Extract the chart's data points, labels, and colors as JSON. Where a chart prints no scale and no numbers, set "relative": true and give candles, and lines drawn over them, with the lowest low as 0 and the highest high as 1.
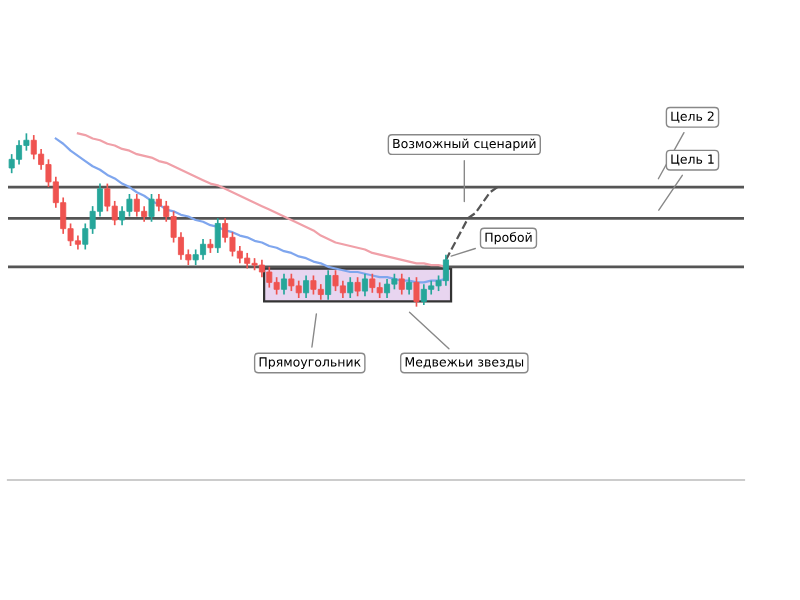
{
  "chart_data": {
    "type": "candlestick",
    "relative": true,
    "categories": [
      null,
      null,
      null,
      null,
      null,
      null,
      null,
      null,
      null,
      null,
      null,
      null,
      null,
      null,
      null,
      null,
      null,
      null,
      null,
      null,
      null,
      null,
      null,
      null,
      null,
      null,
      null,
      null,
      null,
      null,
      null,
      null,
      null,
      null,
      null,
      null,
      null,
      null,
      null,
      null,
      null,
      null,
      null,
      null,
      null,
      null,
      null,
      null,
      null,
      null,
      null,
      null,
      null,
      null,
      null,
      null,
      null,
      null,
      null,
      null,
      null,
      null,
      null,
      null,
      null,
      null,
      null,
      null,
      null,
      null,
      null,
      null,
      null,
      null,
      null,
      null,
      null,
      null,
      null,
      null,
      null,
      null,
      null,
      null,
      null,
      null,
      null,
      null,
      null,
      null,
      null,
      null,
      null,
      null,
      null,
      null,
      null,
      null,
      null,
      null
    ],
    "ohlc": [
      [
        0.8,
        0.88,
        0.77,
        0.85
      ],
      [
        0.85,
        0.96,
        0.82,
        0.93
      ],
      [
        0.93,
        1.0,
        0.9,
        0.96
      ],
      [
        0.96,
        0.99,
        0.85,
        0.88
      ],
      [
        0.88,
        0.91,
        0.79,
        0.82
      ],
      [
        0.82,
        0.85,
        0.69,
        0.72
      ],
      [
        0.72,
        0.75,
        0.57,
        0.6
      ],
      [
        0.6,
        0.63,
        0.42,
        0.45
      ],
      [
        0.45,
        0.48,
        0.35,
        0.38
      ],
      [
        0.38,
        0.41,
        0.33,
        0.36
      ],
      [
        0.36,
        0.48,
        0.33,
        0.45
      ],
      [
        0.45,
        0.58,
        0.42,
        0.55
      ],
      [
        0.55,
        0.71,
        0.52,
        0.68
      ],
      [
        0.68,
        0.71,
        0.55,
        0.58
      ],
      [
        0.58,
        0.61,
        0.47,
        0.5
      ],
      [
        0.5,
        0.58,
        0.47,
        0.55
      ],
      [
        0.55,
        0.65,
        0.52,
        0.62
      ],
      [
        0.62,
        0.65,
        0.52,
        0.55
      ],
      [
        0.55,
        0.58,
        0.49,
        0.52
      ],
      [
        0.52,
        0.65,
        0.49,
        0.62
      ],
      [
        0.62,
        0.65,
        0.55,
        0.58
      ],
      [
        0.58,
        0.61,
        0.49,
        0.52
      ],
      [
        0.52,
        0.55,
        0.37,
        0.4
      ],
      [
        0.4,
        0.43,
        0.27,
        0.3
      ],
      [
        0.3,
        0.33,
        0.24,
        0.27
      ],
      [
        0.27,
        0.33,
        0.24,
        0.3
      ],
      [
        0.3,
        0.39,
        0.27,
        0.36
      ],
      [
        0.36,
        0.39,
        0.31,
        0.34
      ],
      [
        0.34,
        0.51,
        0.31,
        0.48
      ],
      [
        0.48,
        0.51,
        0.37,
        0.4
      ],
      [
        0.4,
        0.43,
        0.29,
        0.32
      ],
      [
        0.32,
        0.35,
        0.25,
        0.28
      ],
      [
        0.28,
        0.31,
        0.22,
        0.25
      ],
      [
        0.25,
        0.28,
        0.21,
        0.24
      ],
      [
        0.24,
        0.27,
        0.17,
        0.2
      ],
      [
        0.2,
        0.23,
        0.11,
        0.14
      ],
      [
        0.14,
        0.17,
        0.07,
        0.1
      ],
      [
        0.1,
        0.19,
        0.07,
        0.16
      ],
      [
        0.16,
        0.19,
        0.09,
        0.12
      ],
      [
        0.12,
        0.15,
        0.05,
        0.08
      ],
      [
        0.08,
        0.18,
        0.05,
        0.15
      ],
      [
        0.15,
        0.18,
        0.07,
        0.1
      ],
      [
        0.1,
        0.13,
        0.04,
        0.07
      ],
      [
        0.07,
        0.21,
        0.04,
        0.18
      ],
      [
        0.18,
        0.21,
        0.09,
        0.12
      ],
      [
        0.12,
        0.15,
        0.05,
        0.08
      ],
      [
        0.08,
        0.17,
        0.05,
        0.14
      ],
      [
        0.14,
        0.17,
        0.06,
        0.09
      ],
      [
        0.09,
        0.19,
        0.06,
        0.16
      ],
      [
        0.16,
        0.19,
        0.08,
        0.11
      ],
      [
        0.11,
        0.14,
        0.05,
        0.08
      ],
      [
        0.08,
        0.16,
        0.05,
        0.13
      ],
      [
        0.13,
        0.19,
        0.1,
        0.16
      ],
      [
        0.16,
        0.19,
        0.07,
        0.1
      ],
      [
        0.1,
        0.17,
        0.07,
        0.14
      ],
      [
        0.14,
        0.17,
        0.0,
        0.03
      ],
      [
        0.03,
        0.13,
        0.01,
        0.1
      ],
      [
        0.1,
        0.15,
        0.07,
        0.12
      ],
      [
        0.12,
        0.18,
        0.09,
        0.15
      ],
      [
        0.15,
        0.3,
        0.12,
        0.27
      ],
      null,
      null,
      null,
      null,
      null,
      null,
      null,
      null,
      null,
      null,
      null,
      null,
      null,
      null,
      null,
      null,
      null,
      null,
      null,
      null,
      null,
      null,
      null,
      null,
      null,
      null,
      null,
      null,
      null,
      null,
      null,
      null,
      null,
      null,
      null,
      null,
      null,
      null,
      null,
      null
    ],
    "colors": [
      "#26a69a",
      "#26a69a",
      "#26a69a",
      "#ef5350",
      "#ef5350",
      "#ef5350",
      "#ef5350",
      "#ef5350",
      "#ef5350",
      "#ef5350",
      "#26a69a",
      "#26a69a",
      "#26a69a",
      "#ef5350",
      "#ef5350",
      "#26a69a",
      "#26a69a",
      "#ef5350",
      "#ef5350",
      "#26a69a",
      "#ef5350",
      "#ef5350",
      "#ef5350",
      "#ef5350",
      "#ef5350",
      "#26a69a",
      "#26a69a",
      "#ef5350",
      "#26a69a",
      "#ef5350",
      "#ef5350",
      "#ef5350",
      "#ef5350",
      "#ef5350",
      "#ef5350",
      "#ef5350",
      "#ef5350",
      "#26a69a",
      "#ef5350",
      "#ef5350",
      "#26a69a",
      "#ef5350",
      "#ef5350",
      "#26a69a",
      "#ef5350",
      "#ef5350",
      "#26a69a",
      "#ef5350",
      "#26a69a",
      "#ef5350",
      "#ef5350",
      "#26a69a",
      "#26a69a",
      "#ef5350",
      "#26a69a",
      "#ef5350",
      "#26a69a",
      "#26a69a",
      "#26a69a",
      "#26a69a",
      null,
      null,
      null,
      null,
      null,
      null,
      null,
      null,
      null,
      null,
      null,
      null,
      null,
      null,
      null,
      null,
      null,
      null,
      null,
      null,
      null,
      null,
      null,
      null,
      null,
      null,
      null,
      null,
      null,
      null,
      null,
      null,
      null,
      null,
      null,
      null,
      null,
      null,
      null,
      null
    ],
    "series": [
      {
        "type": "line",
        "color": "#7fa6ee",
        "values": [
          null,
          null,
          null,
          null,
          null,
          null,
          0.97,
          0.94,
          0.9,
          0.87,
          0.84,
          0.81,
          0.79,
          0.76,
          0.74,
          0.71,
          0.69,
          0.66,
          0.64,
          0.61,
          0.59,
          0.56,
          0.55,
          0.53,
          0.52,
          0.5,
          0.49,
          0.47,
          0.46,
          0.44,
          0.43,
          0.41,
          0.4,
          0.38,
          0.37,
          0.35,
          0.34,
          0.32,
          0.31,
          0.29,
          0.28,
          0.26,
          0.25,
          0.23,
          0.22,
          0.21,
          0.2,
          0.2,
          0.19,
          0.18,
          0.17,
          0.17,
          0.16,
          0.15,
          0.15,
          0.14,
          0.14,
          0.15,
          0.15,
          0.16,
          null,
          null,
          null,
          null,
          null,
          null,
          null,
          null,
          null,
          null,
          null,
          null,
          null,
          null,
          null,
          null,
          null,
          null,
          null,
          null,
          null,
          null,
          null,
          null,
          null,
          null,
          null,
          null,
          null,
          null,
          null,
          null,
          null,
          null,
          null,
          null,
          null,
          null,
          null,
          null
        ]
      },
      {
        "type": "line",
        "color": "#f0a0a8",
        "values": [
          null,
          null,
          null,
          null,
          null,
          null,
          null,
          null,
          null,
          1.0,
          0.99,
          0.97,
          0.96,
          0.94,
          0.93,
          0.91,
          0.9,
          0.88,
          0.87,
          0.86,
          0.84,
          0.83,
          0.81,
          0.79,
          0.77,
          0.75,
          0.73,
          0.71,
          0.7,
          0.68,
          0.66,
          0.64,
          0.62,
          0.6,
          0.58,
          0.56,
          0.54,
          0.52,
          0.5,
          0.48,
          0.46,
          0.44,
          0.41,
          0.39,
          0.37,
          0.36,
          0.35,
          0.34,
          0.33,
          0.31,
          0.3,
          0.29,
          0.28,
          0.27,
          0.26,
          0.25,
          0.25,
          0.24,
          0.24,
          0.23,
          null,
          null,
          null,
          null,
          null,
          null,
          null,
          null,
          null,
          null,
          null,
          null,
          null,
          null,
          null,
          null,
          null,
          null,
          null,
          null,
          null,
          null,
          null,
          null,
          null,
          null,
          null,
          null,
          null,
          null,
          null,
          null,
          null,
          null,
          null,
          null,
          null,
          null,
          null,
          null
        ]
      },
      {
        "type": "line",
        "color": "#555555",
        "line_style": "dashed",
        "values": [
          null,
          null,
          null,
          null,
          null,
          null,
          null,
          null,
          null,
          null,
          null,
          null,
          null,
          null,
          null,
          null,
          null,
          null,
          null,
          null,
          null,
          null,
          null,
          null,
          null,
          null,
          null,
          null,
          null,
          null,
          null,
          null,
          null,
          null,
          null,
          null,
          null,
          null,
          null,
          null,
          null,
          null,
          null,
          null,
          null,
          null,
          null,
          null,
          null,
          null,
          null,
          null,
          null,
          null,
          null,
          null,
          null,
          null,
          null,
          0.27,
          0.35,
          0.43,
          0.51,
          0.54,
          0.6,
          0.66,
          0.69,
          null,
          null,
          null,
          null,
          null,
          null,
          null,
          null,
          null,
          null,
          null,
          null,
          null,
          null,
          null,
          null,
          null,
          null,
          null,
          null,
          null,
          null,
          null,
          null,
          null,
          null,
          null,
          null,
          null,
          null,
          null,
          null,
          null
        ]
      }
    ],
    "ref_lines": [
      {
        "axis": "y",
        "value": 0.69,
        "color": "#555555"
      },
      {
        "axis": "y",
        "value": 0.51,
        "color": "#555555"
      },
      {
        "axis": "y",
        "value": 0.23,
        "color": "#555555"
      }
    ],
    "bands": [
      {
        "axis": "y",
        "from": 0.03,
        "to": 0.22,
        "color": "#e8d5f0"
      }
    ],
    "annotations": [
      "Возможный сценарий",
      "Цель 2",
      "Цель 1",
      "Пробой",
      "Прямоугольник",
      "Медвежьи звезды"
    ],
    "grid": false,
    "legend": false
  }
}
